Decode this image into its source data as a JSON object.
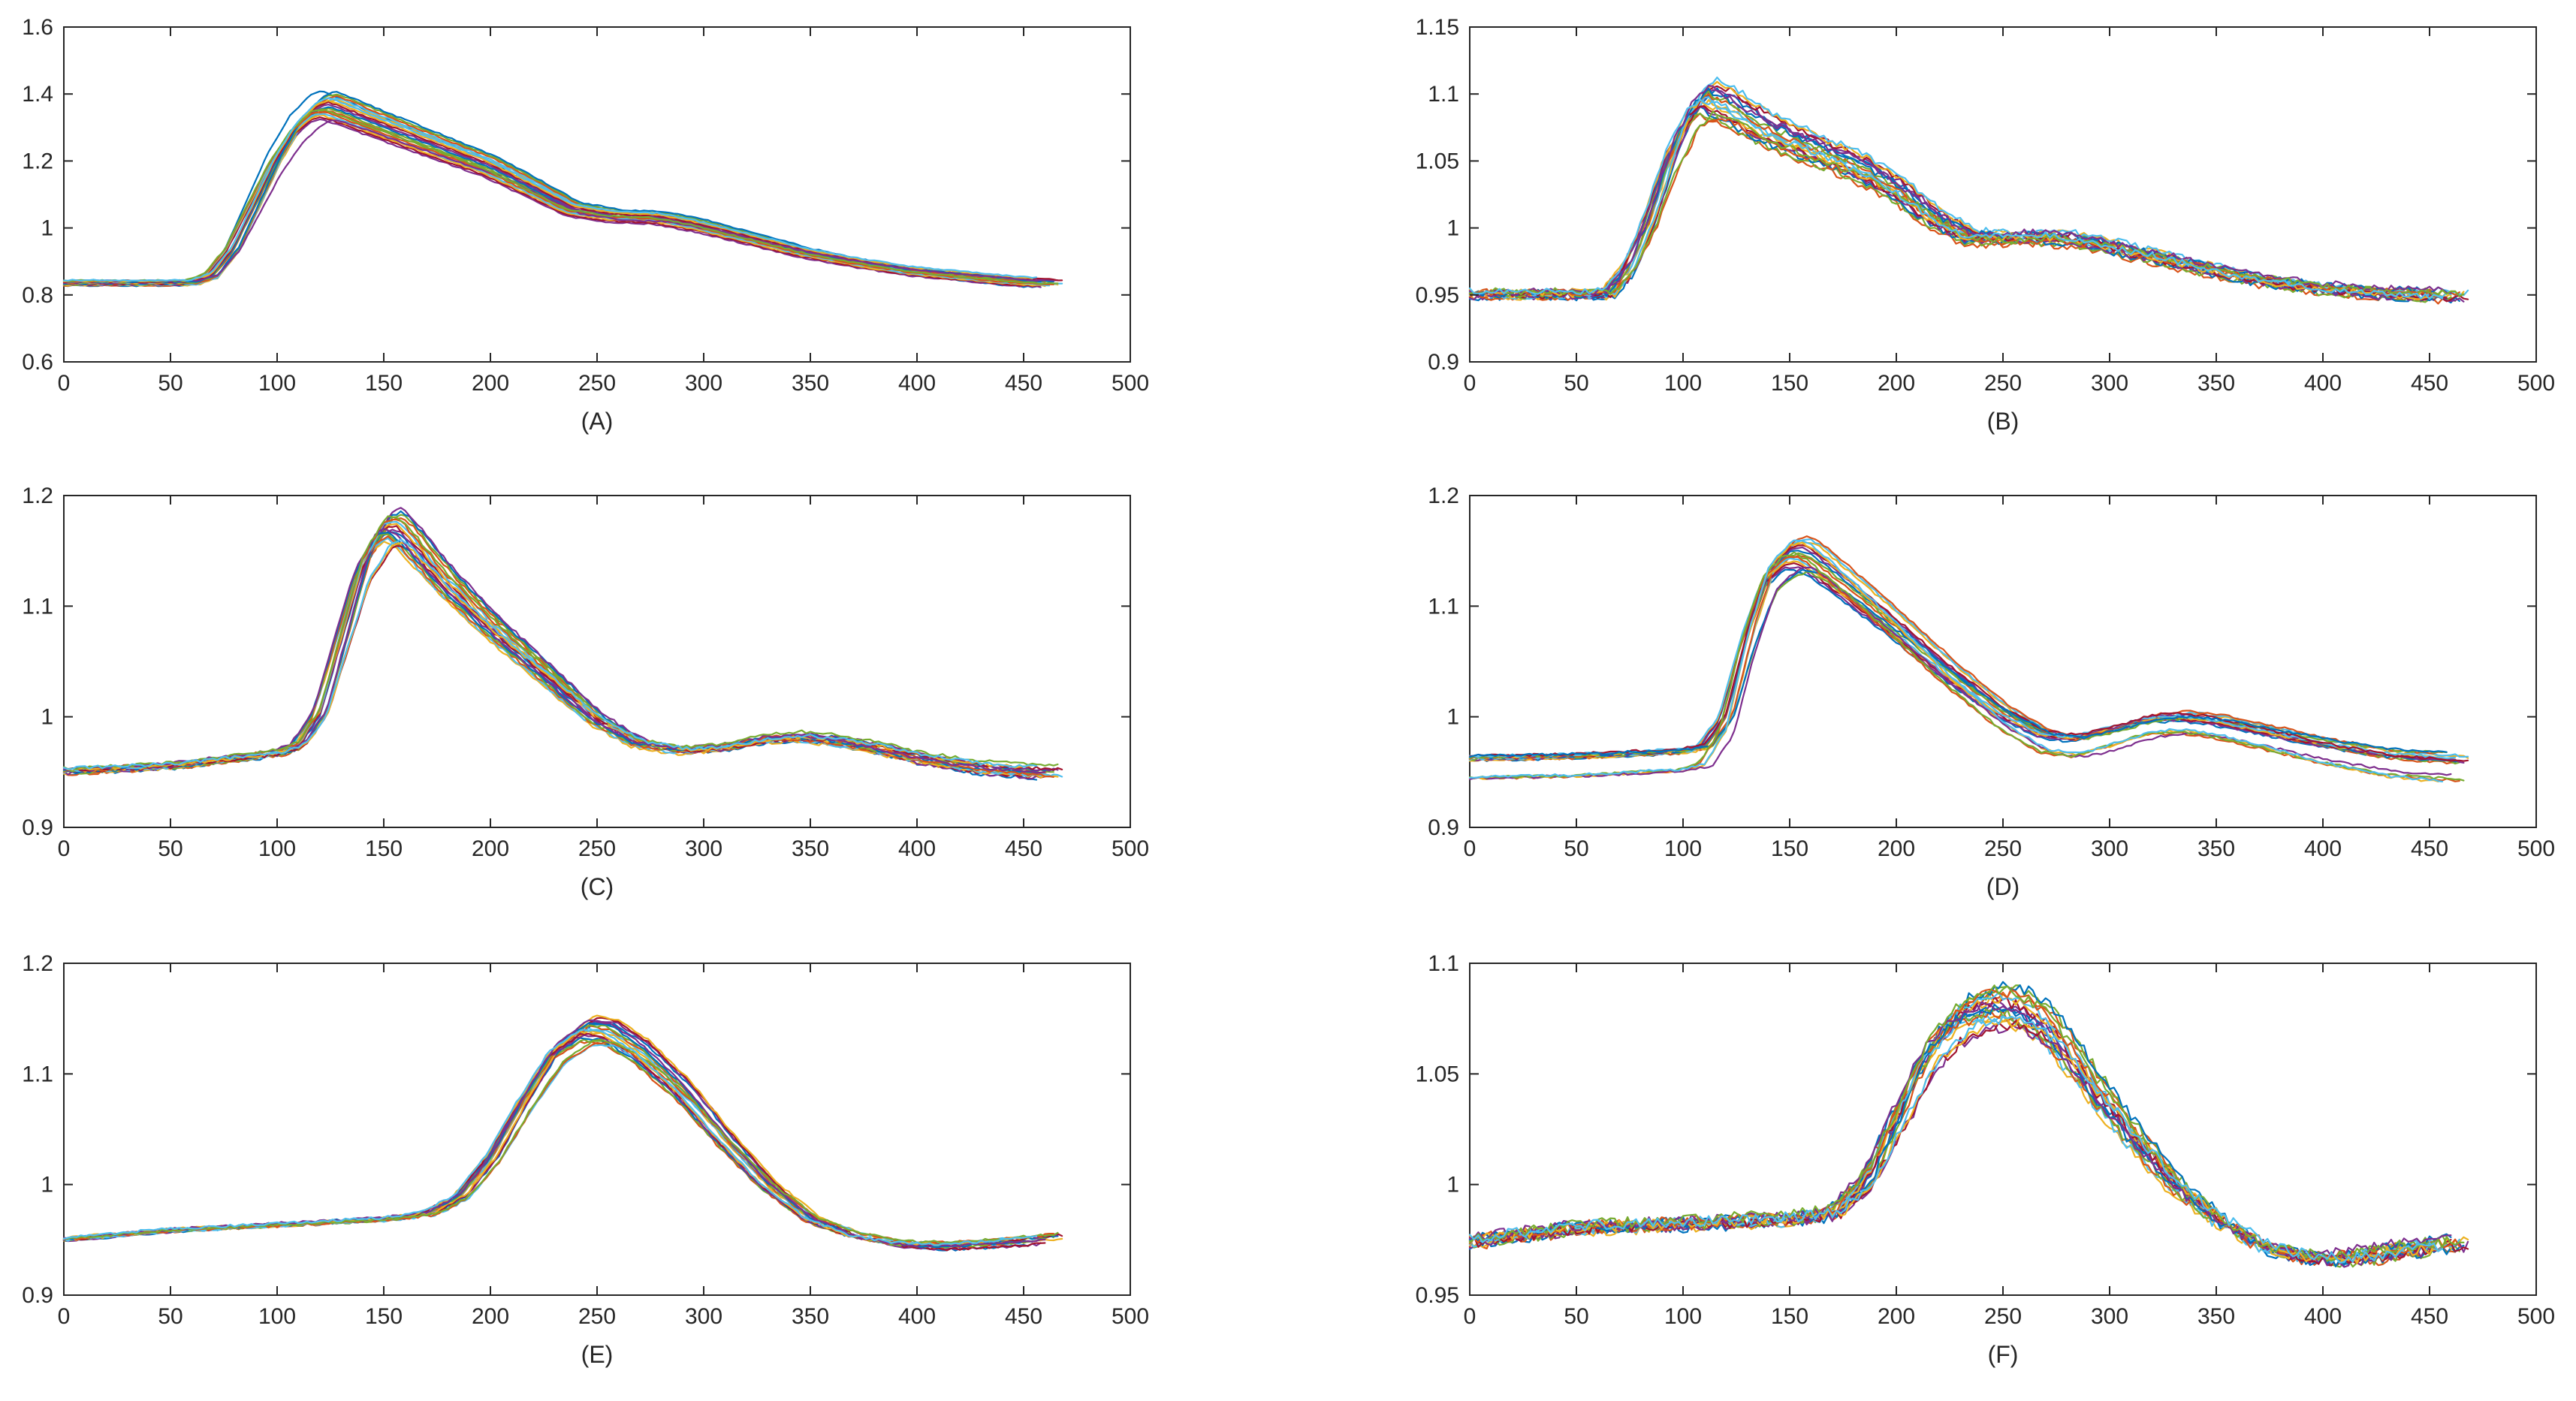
{
  "chart_data": [
    {
      "type": "line",
      "panel": "(A)",
      "caption": "(A)",
      "xlim": [
        0,
        500
      ],
      "ylim": [
        0.6,
        1.6
      ],
      "xticks": [
        0,
        50,
        100,
        150,
        200,
        250,
        300,
        350,
        400,
        450,
        500
      ],
      "xtick_labels": [
        "0",
        "50",
        "100",
        "150",
        "200",
        "250",
        "300",
        "350",
        "400",
        "450",
        "500"
      ],
      "yticks": [
        0.6,
        0.8,
        1.0,
        1.2,
        1.4,
        1.6
      ],
      "ytick_labels": [
        "0.6",
        "0.8",
        "1",
        "1.2",
        "1.4",
        "1.6"
      ],
      "series_count": 20,
      "x_end_range": [
        455,
        470
      ],
      "series_template": {
        "x": [
          0,
          60,
          70,
          80,
          90,
          100,
          110,
          120,
          125,
          130,
          150,
          175,
          200,
          225,
          240,
          260,
          280,
          300,
          325,
          350,
          375,
          400,
          425,
          450,
          470
        ],
        "y": [
          0.82,
          0.82,
          0.84,
          0.92,
          1.05,
          1.18,
          1.28,
          1.34,
          1.35,
          1.34,
          1.29,
          1.23,
          1.17,
          1.09,
          1.04,
          1.02,
          1.015,
          0.99,
          0.95,
          0.91,
          0.88,
          0.855,
          0.84,
          0.825,
          0.82
        ]
      },
      "start_spread": [
        0.79,
        0.85
      ],
      "peak_spread": [
        1.32,
        1.41
      ],
      "noise": 0.002
    },
    {
      "type": "line",
      "panel": "(B)",
      "caption": "(B)",
      "xlim": [
        0,
        500
      ],
      "ylim": [
        0.9,
        1.15
      ],
      "xticks": [
        0,
        50,
        100,
        150,
        200,
        250,
        300,
        350,
        400,
        450,
        500
      ],
      "xtick_labels": [
        "0",
        "50",
        "100",
        "150",
        "200",
        "250",
        "300",
        "350",
        "400",
        "450",
        "500"
      ],
      "yticks": [
        0.9,
        0.95,
        1.0,
        1.05,
        1.1,
        1.15
      ],
      "ytick_labels": [
        "0.9",
        "0.95",
        "1",
        "1.05",
        "1.1",
        "1.15"
      ],
      "series_count": 20,
      "x_end_range": [
        455,
        470
      ],
      "series_template": {
        "x": [
          0,
          65,
          75,
          85,
          95,
          105,
          112,
          120,
          140,
          160,
          180,
          200,
          220,
          235,
          250,
          270,
          290,
          310,
          340,
          370,
          400,
          430,
          470
        ],
        "y": [
          0.958,
          0.958,
          0.975,
          1.01,
          1.055,
          1.085,
          1.095,
          1.09,
          1.072,
          1.06,
          1.048,
          1.032,
          1.01,
          0.998,
          0.997,
          0.998,
          0.995,
          0.988,
          0.978,
          0.968,
          0.962,
          0.958,
          0.956
        ]
      },
      "start_spread": [
        0.948,
        0.965
      ],
      "peak_spread": [
        1.083,
        1.113
      ],
      "noise": 0.0025
    },
    {
      "type": "line",
      "panel": "(C)",
      "caption": "(C)",
      "xlim": [
        0,
        500
      ],
      "ylim": [
        0.9,
        1.2
      ],
      "xticks": [
        0,
        50,
        100,
        150,
        200,
        250,
        300,
        350,
        400,
        450,
        500
      ],
      "xtick_labels": [
        "0",
        "50",
        "100",
        "150",
        "200",
        "250",
        "300",
        "350",
        "400",
        "450",
        "500"
      ],
      "yticks": [
        0.9,
        1.0,
        1.1,
        1.2
      ],
      "ytick_labels": [
        "0.9",
        "1",
        "1.1",
        "1.2"
      ],
      "series_count": 20,
      "x_end_range": [
        455,
        470
      ],
      "series_template": {
        "x": [
          0,
          50,
          100,
          110,
          120,
          130,
          140,
          150,
          155,
          160,
          180,
          200,
          225,
          250,
          270,
          290,
          310,
          330,
          345,
          360,
          380,
          400,
          430,
          470
        ],
        "y": [
          0.945,
          0.95,
          0.962,
          0.97,
          1.0,
          1.07,
          1.14,
          1.175,
          1.18,
          1.172,
          1.125,
          1.085,
          1.04,
          0.995,
          0.972,
          0.965,
          0.968,
          0.976,
          0.978,
          0.975,
          0.968,
          0.958,
          0.948,
          0.943
        ]
      },
      "start_spread": [
        0.94,
        0.96
      ],
      "peak_spread": [
        1.155,
        1.19
      ],
      "noise": 0.0015
    },
    {
      "type": "line",
      "panel": "(D)",
      "caption": "(D)",
      "xlim": [
        0,
        500
      ],
      "ylim": [
        0.9,
        1.2
      ],
      "xticks": [
        0,
        50,
        100,
        150,
        200,
        250,
        300,
        350,
        400,
        450,
        500
      ],
      "xtick_labels": [
        "0",
        "50",
        "100",
        "150",
        "200",
        "250",
        "300",
        "350",
        "400",
        "450",
        "500"
      ],
      "yticks": [
        0.9,
        1.0,
        1.1,
        1.2
      ],
      "ytick_labels": [
        "0.9",
        "1",
        "1.1",
        "1.2"
      ],
      "series_count": 20,
      "x_end_range": [
        455,
        470
      ],
      "series_template": {
        "x": [
          0,
          50,
          100,
          110,
          120,
          130,
          140,
          150,
          155,
          160,
          180,
          200,
          225,
          250,
          270,
          285,
          300,
          320,
          335,
          350,
          375,
          400,
          430,
          470
        ],
        "y": [
          0.948,
          0.95,
          0.955,
          0.96,
          0.99,
          1.07,
          1.13,
          1.15,
          1.152,
          1.148,
          1.115,
          1.08,
          1.035,
          0.995,
          0.972,
          0.968,
          0.976,
          0.988,
          0.99,
          0.986,
          0.975,
          0.963,
          0.952,
          0.946
        ]
      },
      "start_spread": [
        0.944,
        0.965
      ],
      "peak_spread": [
        1.13,
        1.165
      ],
      "noise": 0.0012
    },
    {
      "type": "line",
      "panel": "(E)",
      "caption": "(E)",
      "xlim": [
        0,
        500
      ],
      "ylim": [
        0.9,
        1.2
      ],
      "xticks": [
        0,
        50,
        100,
        150,
        200,
        250,
        300,
        350,
        400,
        450,
        500
      ],
      "xtick_labels": [
        "0",
        "50",
        "100",
        "150",
        "200",
        "250",
        "300",
        "350",
        "400",
        "450",
        "500"
      ],
      "yticks": [
        0.9,
        1.0,
        1.1,
        1.2
      ],
      "ytick_labels": [
        "0.9",
        "1",
        "1.1",
        "1.2"
      ],
      "series_count": 20,
      "x_end_range": [
        455,
        470
      ],
      "series_template": {
        "x": [
          0,
          50,
          100,
          150,
          170,
          185,
          200,
          215,
          230,
          245,
          255,
          270,
          290,
          310,
          330,
          350,
          370,
          390,
          410,
          430,
          450,
          470
        ],
        "y": [
          0.952,
          0.96,
          0.965,
          0.97,
          0.975,
          0.99,
          1.025,
          1.075,
          1.12,
          1.14,
          1.138,
          1.12,
          1.085,
          1.04,
          1.0,
          0.97,
          0.955,
          0.948,
          0.946,
          0.948,
          0.951,
          0.955
        ]
      },
      "start_spread": [
        0.948,
        0.956
      ],
      "peak_spread": [
        1.125,
        1.152
      ],
      "noise": 0.0012
    },
    {
      "type": "line",
      "panel": "(F)",
      "caption": "(F)",
      "xlim": [
        0,
        500
      ],
      "ylim": [
        0.95,
        1.1
      ],
      "xticks": [
        0,
        50,
        100,
        150,
        200,
        250,
        300,
        350,
        400,
        450,
        500
      ],
      "xtick_labels": [
        "0",
        "50",
        "100",
        "150",
        "200",
        "250",
        "300",
        "350",
        "400",
        "450",
        "500"
      ],
      "yticks": [
        0.95,
        1.0,
        1.05,
        1.1
      ],
      "ytick_labels": [
        "0.95",
        "1",
        "1.05",
        "1.1"
      ],
      "series_count": 20,
      "x_end_range": [
        455,
        470
      ],
      "series_template": {
        "x": [
          0,
          50,
          100,
          150,
          170,
          185,
          200,
          215,
          230,
          245,
          255,
          270,
          290,
          310,
          330,
          350,
          370,
          390,
          405,
          420,
          440,
          470
        ],
        "y": [
          0.972,
          0.978,
          0.98,
          0.982,
          0.985,
          1.0,
          1.03,
          1.06,
          1.075,
          1.08,
          1.079,
          1.07,
          1.045,
          1.02,
          0.998,
          0.982,
          0.97,
          0.965,
          0.964,
          0.966,
          0.969,
          0.972
        ]
      },
      "start_spread": [
        0.966,
        0.978
      ],
      "peak_spread": [
        1.07,
        1.09
      ],
      "noise": 0.0025
    }
  ],
  "series_colors": [
    "#0072bd",
    "#d95319",
    "#edb120",
    "#7e2f8e",
    "#77ac30",
    "#4dbeee",
    "#a2142f"
  ]
}
